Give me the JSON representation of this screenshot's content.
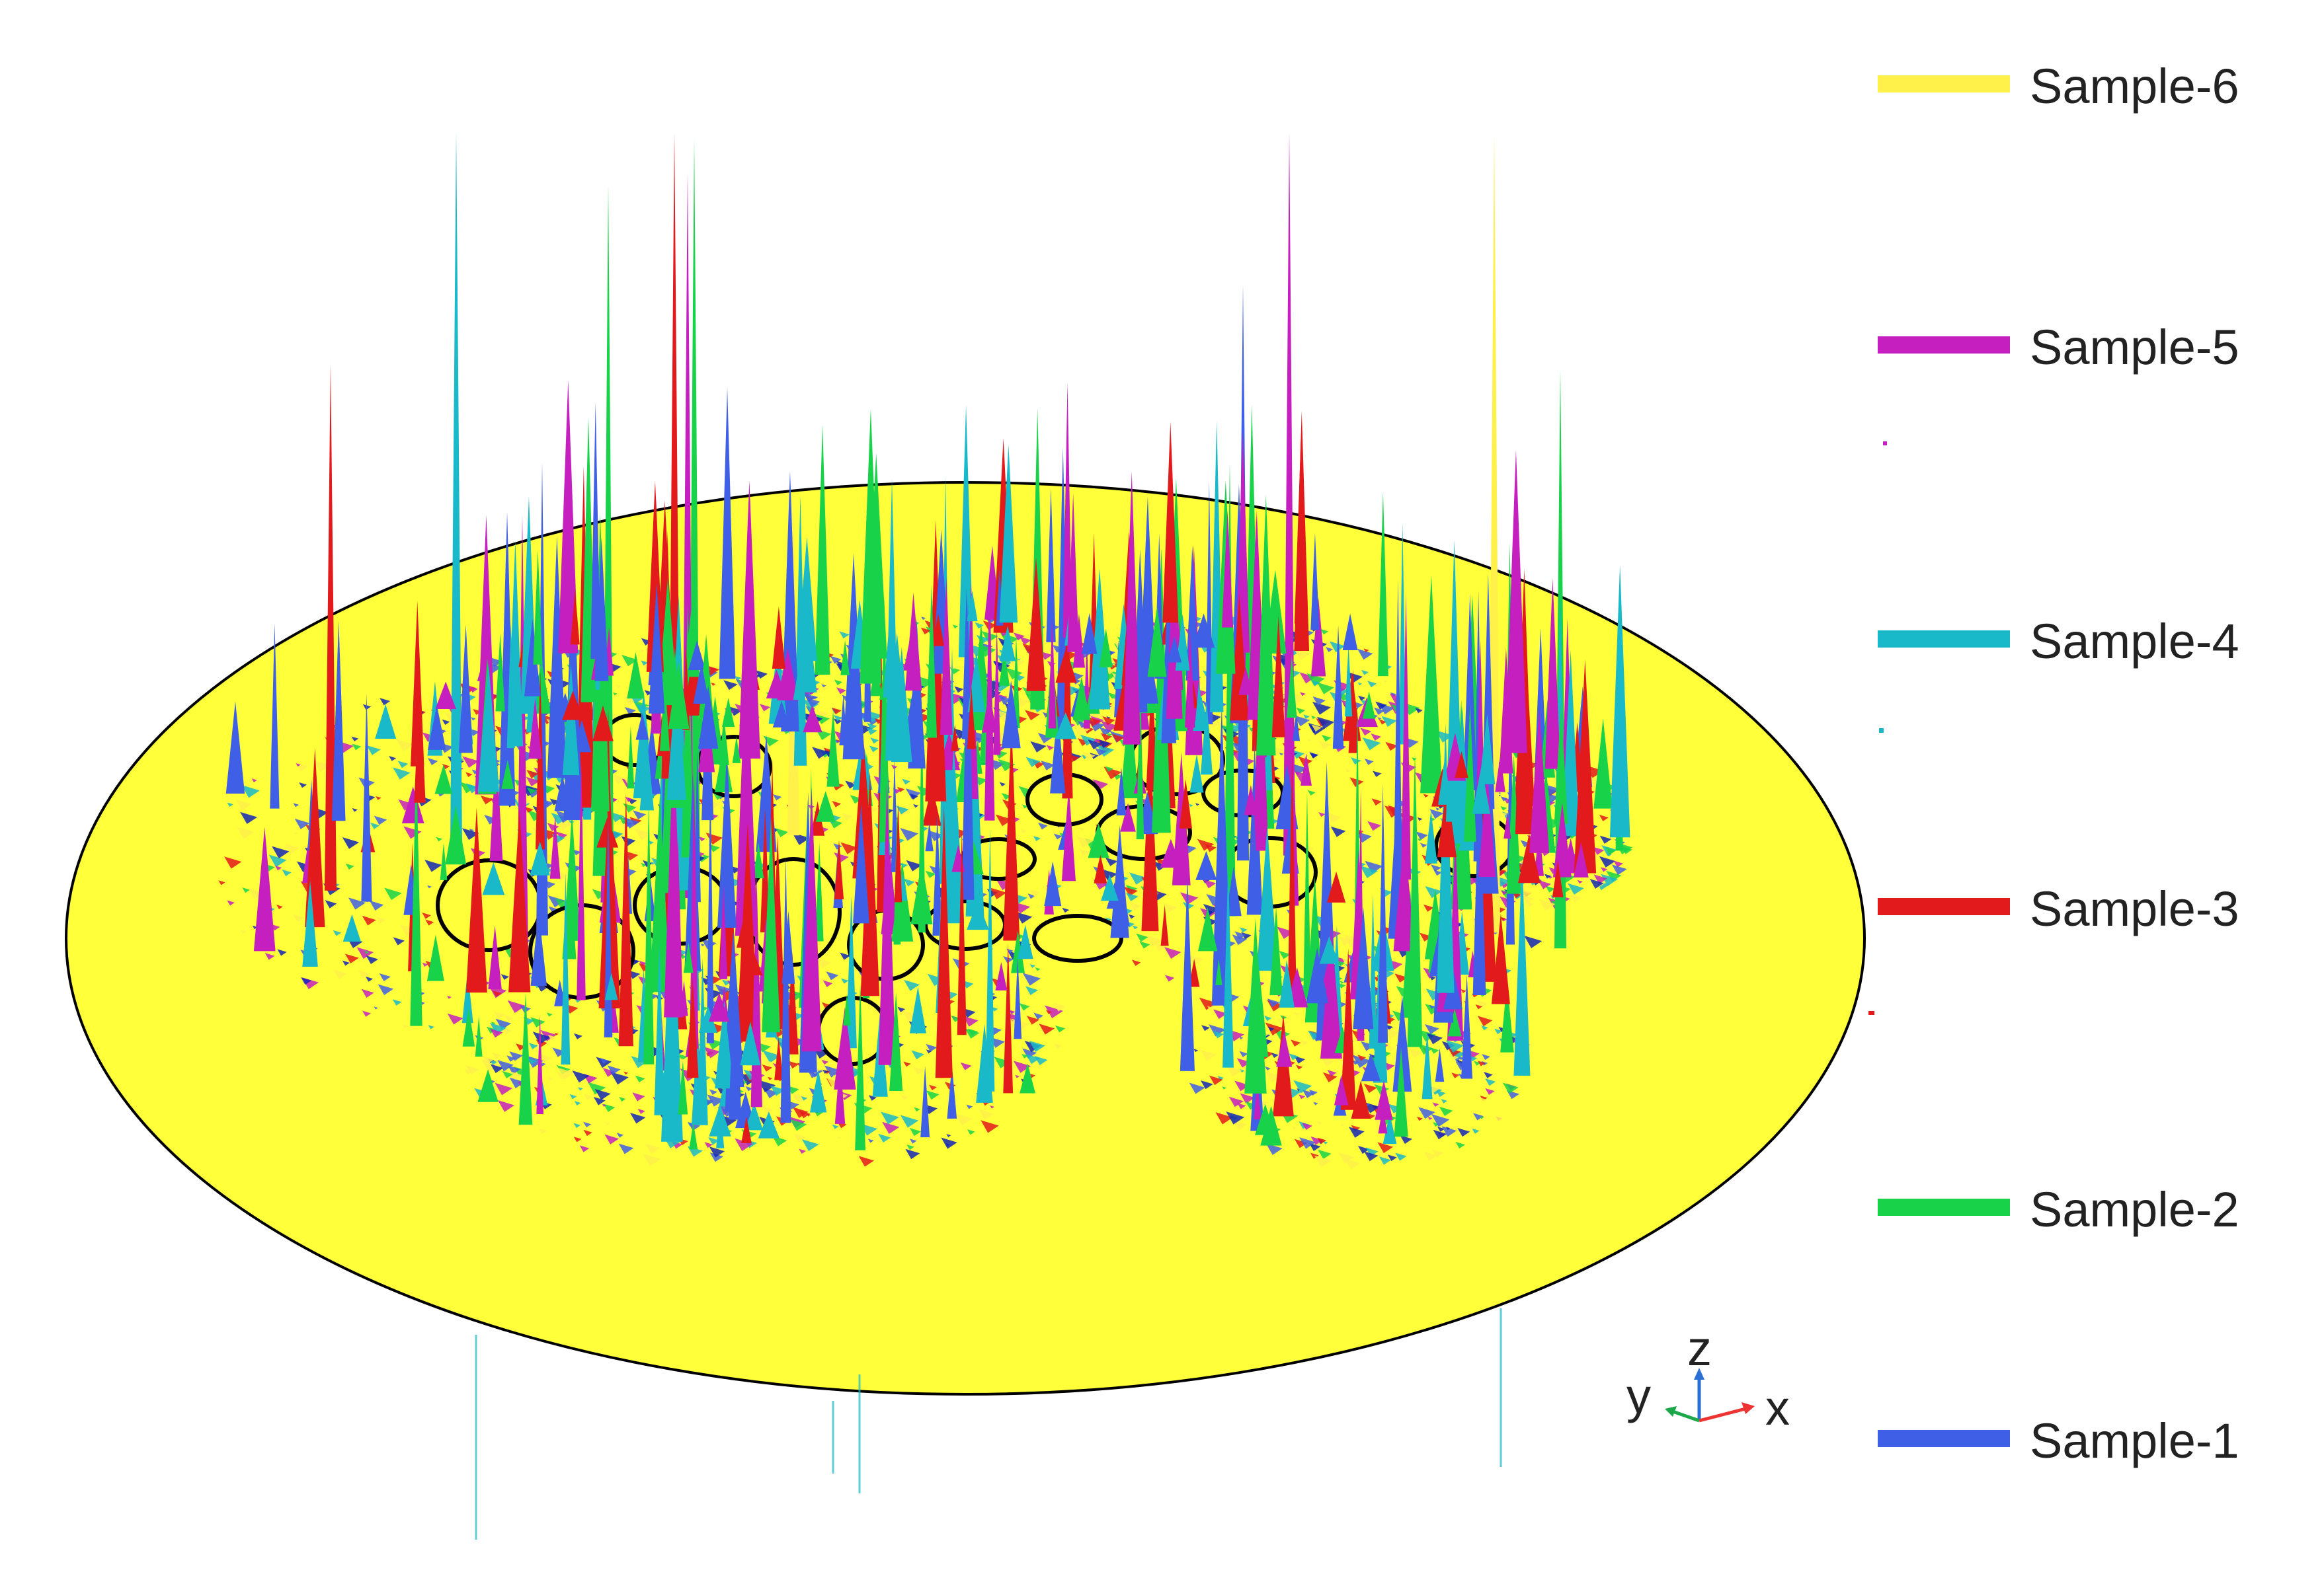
{
  "legend": {
    "items": [
      {
        "label": "Sample-6",
        "color": "#fff04a"
      },
      {
        "label": "Sample-5",
        "color": "#c61fbf"
      },
      {
        "label": "Sample-4",
        "color": "#19b9c9"
      },
      {
        "label": "Sample-3",
        "color": "#e31a1c"
      },
      {
        "label": "Sample-2",
        "color": "#18d24a"
      },
      {
        "label": "Sample-1",
        "color": "#3f5fe6"
      }
    ]
  },
  "axes": {
    "z": "z",
    "y": "y",
    "x": "x"
  },
  "colors": {
    "disk": "#ffff3a",
    "disk_outline": "#000000"
  }
}
